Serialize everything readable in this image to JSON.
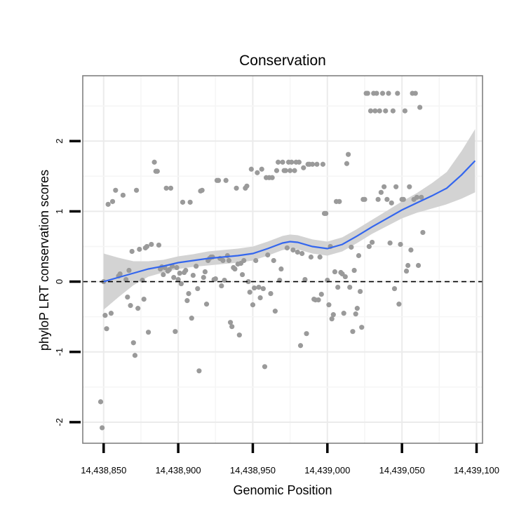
{
  "chart_data": {
    "type": "scatter",
    "title": "Conservation",
    "xlabel": "Genomic Position",
    "ylabel": "phyloP LRT conservation scores",
    "xlim": [
      14438836,
      14439104
    ],
    "ylim": [
      -2.3,
      2.93
    ],
    "x_ticks": [
      14438850,
      14438900,
      14438950,
      14439000,
      14439050,
      14439100
    ],
    "x_tick_labels": [
      "14,438,850",
      "14,438,900",
      "14,438,950",
      "14,439,000",
      "14,439,050",
      "14,439,100"
    ],
    "y_ticks": [
      -2,
      -1,
      0,
      1,
      2
    ],
    "y_tick_labels": [
      "-2",
      "-1",
      "0",
      "1",
      "2"
    ],
    "reference_line": {
      "y": 0,
      "style": "dashed"
    },
    "points": [
      {
        "x": 14438848,
        "y": -1.71
      },
      {
        "x": 14438849,
        "y": -2.08
      },
      {
        "x": 14438850,
        "y": 0.0
      },
      {
        "x": 14438851,
        "y": -0.48
      },
      {
        "x": 14438852,
        "y": -0.67
      },
      {
        "x": 14438853,
        "y": 1.1
      },
      {
        "x": 14438855,
        "y": -0.45
      },
      {
        "x": 14438856,
        "y": 1.14
      },
      {
        "x": 14438858,
        "y": 1.3
      },
      {
        "x": 14438860,
        "y": 0.08
      },
      {
        "x": 14438861,
        "y": 0.11
      },
      {
        "x": 14438863,
        "y": 1.23
      },
      {
        "x": 14438865,
        "y": 0.03
      },
      {
        "x": 14438866,
        "y": -0.22
      },
      {
        "x": 14438867,
        "y": 0.16
      },
      {
        "x": 14438868,
        "y": -0.34
      },
      {
        "x": 14438869,
        "y": 0.43
      },
      {
        "x": 14438870,
        "y": -0.87
      },
      {
        "x": 14438871,
        "y": -1.05
      },
      {
        "x": 14438872,
        "y": 1.3
      },
      {
        "x": 14438873,
        "y": -0.38
      },
      {
        "x": 14438874,
        "y": 0.46
      },
      {
        "x": 14438876,
        "y": 0.02
      },
      {
        "x": 14438877,
        "y": -0.25
      },
      {
        "x": 14438878,
        "y": 0.48
      },
      {
        "x": 14438879,
        "y": 0.5
      },
      {
        "x": 14438880,
        "y": -0.72
      },
      {
        "x": 14438882,
        "y": 0.53
      },
      {
        "x": 14438884,
        "y": 1.7
      },
      {
        "x": 14438885,
        "y": 1.57
      },
      {
        "x": 14438886,
        "y": 1.57
      },
      {
        "x": 14438887,
        "y": 0.52
      },
      {
        "x": 14438888,
        "y": 0.18
      },
      {
        "x": 14438889,
        "y": 0.21
      },
      {
        "x": 14438890,
        "y": 0.1
      },
      {
        "x": 14438891,
        "y": 0.2
      },
      {
        "x": 14438892,
        "y": 1.33
      },
      {
        "x": 14438893,
        "y": 0.15
      },
      {
        "x": 14438894,
        "y": 0.17
      },
      {
        "x": 14438895,
        "y": 1.33
      },
      {
        "x": 14438896,
        "y": 0.22
      },
      {
        "x": 14438897,
        "y": 0.06
      },
      {
        "x": 14438898,
        "y": -0.71
      },
      {
        "x": 14438899,
        "y": 0.2
      },
      {
        "x": 14438900,
        "y": 0.03
      },
      {
        "x": 14438901,
        "y": 0.12
      },
      {
        "x": 14438902,
        "y": -0.03
      },
      {
        "x": 14438903,
        "y": 1.13
      },
      {
        "x": 14438904,
        "y": 0.13
      },
      {
        "x": 14438905,
        "y": 0.16
      },
      {
        "x": 14438906,
        "y": -0.27
      },
      {
        "x": 14438907,
        "y": -0.17
      },
      {
        "x": 14438908,
        "y": 1.13
      },
      {
        "x": 14438909,
        "y": -0.52
      },
      {
        "x": 14438910,
        "y": 0.09
      },
      {
        "x": 14438912,
        "y": 0.22
      },
      {
        "x": 14438913,
        "y": -0.1
      },
      {
        "x": 14438914,
        "y": -1.27
      },
      {
        "x": 14438915,
        "y": 1.29
      },
      {
        "x": 14438916,
        "y": 1.3
      },
      {
        "x": 14438917,
        "y": 0.06
      },
      {
        "x": 14438918,
        "y": 0.14
      },
      {
        "x": 14438919,
        "y": -0.32
      },
      {
        "x": 14438920,
        "y": 0.3
      },
      {
        "x": 14438921,
        "y": 0.33
      },
      {
        "x": 14438922,
        "y": 0.35
      },
      {
        "x": 14438923,
        "y": 0.35
      },
      {
        "x": 14438924,
        "y": 0.03
      },
      {
        "x": 14438925,
        "y": 0.04
      },
      {
        "x": 14438926,
        "y": 1.44
      },
      {
        "x": 14438927,
        "y": 1.44
      },
      {
        "x": 14438928,
        "y": 0.33
      },
      {
        "x": 14438929,
        "y": -0.06
      },
      {
        "x": 14438930,
        "y": 0.3
      },
      {
        "x": 14438931,
        "y": 0.02
      },
      {
        "x": 14438932,
        "y": 1.44
      },
      {
        "x": 14438933,
        "y": 0.37
      },
      {
        "x": 14438934,
        "y": 0.3
      },
      {
        "x": 14438935,
        "y": -0.58
      },
      {
        "x": 14438936,
        "y": -0.64
      },
      {
        "x": 14438937,
        "y": 0.2
      },
      {
        "x": 14438938,
        "y": 0.18
      },
      {
        "x": 14438939,
        "y": 1.33
      },
      {
        "x": 14438940,
        "y": 0.25
      },
      {
        "x": 14438941,
        "y": -0.76
      },
      {
        "x": 14438942,
        "y": 0.26
      },
      {
        "x": 14438943,
        "y": 0.1
      },
      {
        "x": 14438944,
        "y": 0.3
      },
      {
        "x": 14438945,
        "y": 1.33
      },
      {
        "x": 14438946,
        "y": 1.36
      },
      {
        "x": 14438947,
        "y": 0.0
      },
      {
        "x": 14438948,
        "y": -0.15
      },
      {
        "x": 14438949,
        "y": 1.6
      },
      {
        "x": 14438950,
        "y": -0.33
      },
      {
        "x": 14438951,
        "y": -0.09
      },
      {
        "x": 14438952,
        "y": 0.3
      },
      {
        "x": 14438953,
        "y": 1.55
      },
      {
        "x": 14438954,
        "y": -0.08
      },
      {
        "x": 14438955,
        "y": -0.23
      },
      {
        "x": 14438956,
        "y": 1.6
      },
      {
        "x": 14438957,
        "y": -0.1
      },
      {
        "x": 14438958,
        "y": -1.21
      },
      {
        "x": 14438959,
        "y": 1.48
      },
      {
        "x": 14438960,
        "y": 0.38
      },
      {
        "x": 14438961,
        "y": 1.48
      },
      {
        "x": 14438962,
        "y": -0.17
      },
      {
        "x": 14438963,
        "y": 1.48
      },
      {
        "x": 14438964,
        "y": 0.3
      },
      {
        "x": 14438965,
        "y": -0.42
      },
      {
        "x": 14438966,
        "y": 1.58
      },
      {
        "x": 14438967,
        "y": 1.7
      },
      {
        "x": 14438968,
        "y": 0.02
      },
      {
        "x": 14438969,
        "y": 0.18
      },
      {
        "x": 14438970,
        "y": 1.7
      },
      {
        "x": 14438971,
        "y": 1.58
      },
      {
        "x": 14438972,
        "y": 1.58
      },
      {
        "x": 14438973,
        "y": 0.48
      },
      {
        "x": 14438974,
        "y": 1.7
      },
      {
        "x": 14438975,
        "y": 1.58
      },
      {
        "x": 14438976,
        "y": 1.7
      },
      {
        "x": 14438977,
        "y": 0.45
      },
      {
        "x": 14438978,
        "y": 1.58
      },
      {
        "x": 14438979,
        "y": 1.7
      },
      {
        "x": 14438980,
        "y": 0.42
      },
      {
        "x": 14438981,
        "y": 1.7
      },
      {
        "x": 14438982,
        "y": -0.91
      },
      {
        "x": 14438983,
        "y": 0.4
      },
      {
        "x": 14438984,
        "y": 1.62
      },
      {
        "x": 14438985,
        "y": 0.03
      },
      {
        "x": 14438986,
        "y": -0.74
      },
      {
        "x": 14438987,
        "y": 1.67
      },
      {
        "x": 14438988,
        "y": 1.67
      },
      {
        "x": 14438989,
        "y": 0.35
      },
      {
        "x": 14438990,
        "y": 1.67
      },
      {
        "x": 14438991,
        "y": -0.25
      },
      {
        "x": 14438992,
        "y": -0.26
      },
      {
        "x": 14438993,
        "y": 1.67
      },
      {
        "x": 14438994,
        "y": -0.26
      },
      {
        "x": 14438995,
        "y": 0.35
      },
      {
        "x": 14438996,
        "y": -0.18
      },
      {
        "x": 14438997,
        "y": 1.67
      },
      {
        "x": 14438998,
        "y": 0.97
      },
      {
        "x": 14438999,
        "y": 0.97
      },
      {
        "x": 14439000,
        "y": 0.02
      },
      {
        "x": 14439001,
        "y": -0.33
      },
      {
        "x": 14439002,
        "y": 0.5
      },
      {
        "x": 14439003,
        "y": -0.53
      },
      {
        "x": 14439004,
        "y": -0.47
      },
      {
        "x": 14439005,
        "y": 0.14
      },
      {
        "x": 14439006,
        "y": 1.14
      },
      {
        "x": 14439007,
        "y": -0.08
      },
      {
        "x": 14439008,
        "y": 1.14
      },
      {
        "x": 14439009,
        "y": 0.13
      },
      {
        "x": 14439010,
        "y": 0.11
      },
      {
        "x": 14439011,
        "y": -0.45
      },
      {
        "x": 14439012,
        "y": 0.07
      },
      {
        "x": 14439013,
        "y": 1.68
      },
      {
        "x": 14439014,
        "y": 1.81
      },
      {
        "x": 14439015,
        "y": -0.08
      },
      {
        "x": 14439016,
        "y": 0.49
      },
      {
        "x": 14439017,
        "y": -0.71
      },
      {
        "x": 14439018,
        "y": 0.16
      },
      {
        "x": 14439019,
        "y": -0.46
      },
      {
        "x": 14439020,
        "y": -0.38
      },
      {
        "x": 14439021,
        "y": 0.37
      },
      {
        "x": 14439022,
        "y": -0.14
      },
      {
        "x": 14439023,
        "y": -0.65
      },
      {
        "x": 14439024,
        "y": 1.17
      },
      {
        "x": 14439025,
        "y": 1.17
      },
      {
        "x": 14439026,
        "y": 2.68
      },
      {
        "x": 14439027,
        "y": 2.68
      },
      {
        "x": 14439028,
        "y": 0.5
      },
      {
        "x": 14439029,
        "y": 2.43
      },
      {
        "x": 14439030,
        "y": 0.56
      },
      {
        "x": 14439031,
        "y": 2.68
      },
      {
        "x": 14439032,
        "y": 2.43
      },
      {
        "x": 14439033,
        "y": 2.68
      },
      {
        "x": 14439034,
        "y": 1.17
      },
      {
        "x": 14439035,
        "y": 2.43
      },
      {
        "x": 14439036,
        "y": 1.27
      },
      {
        "x": 14439037,
        "y": 2.68
      },
      {
        "x": 14439038,
        "y": 1.35
      },
      {
        "x": 14439039,
        "y": 2.43
      },
      {
        "x": 14439040,
        "y": 1.17
      },
      {
        "x": 14439041,
        "y": 2.68
      },
      {
        "x": 14439042,
        "y": 0.55
      },
      {
        "x": 14439043,
        "y": 1.12
      },
      {
        "x": 14439044,
        "y": 2.43
      },
      {
        "x": 14439045,
        "y": -0.1
      },
      {
        "x": 14439046,
        "y": 1.35
      },
      {
        "x": 14439047,
        "y": 2.68
      },
      {
        "x": 14439048,
        "y": -0.32
      },
      {
        "x": 14439049,
        "y": 0.53
      },
      {
        "x": 14439050,
        "y": 1.17
      },
      {
        "x": 14439051,
        "y": 1.17
      },
      {
        "x": 14439052,
        "y": 2.43
      },
      {
        "x": 14439053,
        "y": 0.15
      },
      {
        "x": 14439054,
        "y": 0.23
      },
      {
        "x": 14439055,
        "y": 1.35
      },
      {
        "x": 14439056,
        "y": 0.45
      },
      {
        "x": 14439057,
        "y": 2.68
      },
      {
        "x": 14439058,
        "y": 1.17
      },
      {
        "x": 14439059,
        "y": 2.68
      },
      {
        "x": 14439060,
        "y": 1.2
      },
      {
        "x": 14439061,
        "y": 0.23
      },
      {
        "x": 14439062,
        "y": 2.48
      },
      {
        "x": 14439063,
        "y": 1.2
      },
      {
        "x": 14439064,
        "y": 0.7
      }
    ],
    "smooth_line": {
      "color": "#3366ee",
      "x": [
        14438850,
        14438860,
        14438870,
        14438880,
        14438890,
        14438900,
        14438910,
        14438920,
        14438930,
        14438940,
        14438950,
        14438960,
        14438970,
        14438975,
        14438980,
        14438990,
        14439000,
        14439010,
        14439020,
        14439030,
        14439040,
        14439050,
        14439060,
        14439070,
        14439080,
        14439090,
        14439099
      ],
      "y": [
        0.0,
        0.06,
        0.12,
        0.18,
        0.22,
        0.27,
        0.3,
        0.33,
        0.35,
        0.37,
        0.4,
        0.47,
        0.55,
        0.57,
        0.56,
        0.5,
        0.47,
        0.53,
        0.65,
        0.78,
        0.9,
        1.02,
        1.12,
        1.22,
        1.33,
        1.52,
        1.72
      ],
      "ci_lower": [
        -0.4,
        -0.22,
        -0.05,
        0.07,
        0.13,
        0.18,
        0.21,
        0.23,
        0.25,
        0.27,
        0.3,
        0.37,
        0.45,
        0.47,
        0.46,
        0.4,
        0.37,
        0.43,
        0.55,
        0.68,
        0.79,
        0.9,
        0.98,
        1.04,
        1.1,
        1.18,
        1.27
      ],
      "ci_upper": [
        0.4,
        0.34,
        0.29,
        0.29,
        0.31,
        0.36,
        0.39,
        0.43,
        0.45,
        0.47,
        0.5,
        0.57,
        0.65,
        0.67,
        0.66,
        0.6,
        0.57,
        0.63,
        0.75,
        0.88,
        1.01,
        1.14,
        1.26,
        1.4,
        1.56,
        1.86,
        2.17
      ]
    }
  }
}
